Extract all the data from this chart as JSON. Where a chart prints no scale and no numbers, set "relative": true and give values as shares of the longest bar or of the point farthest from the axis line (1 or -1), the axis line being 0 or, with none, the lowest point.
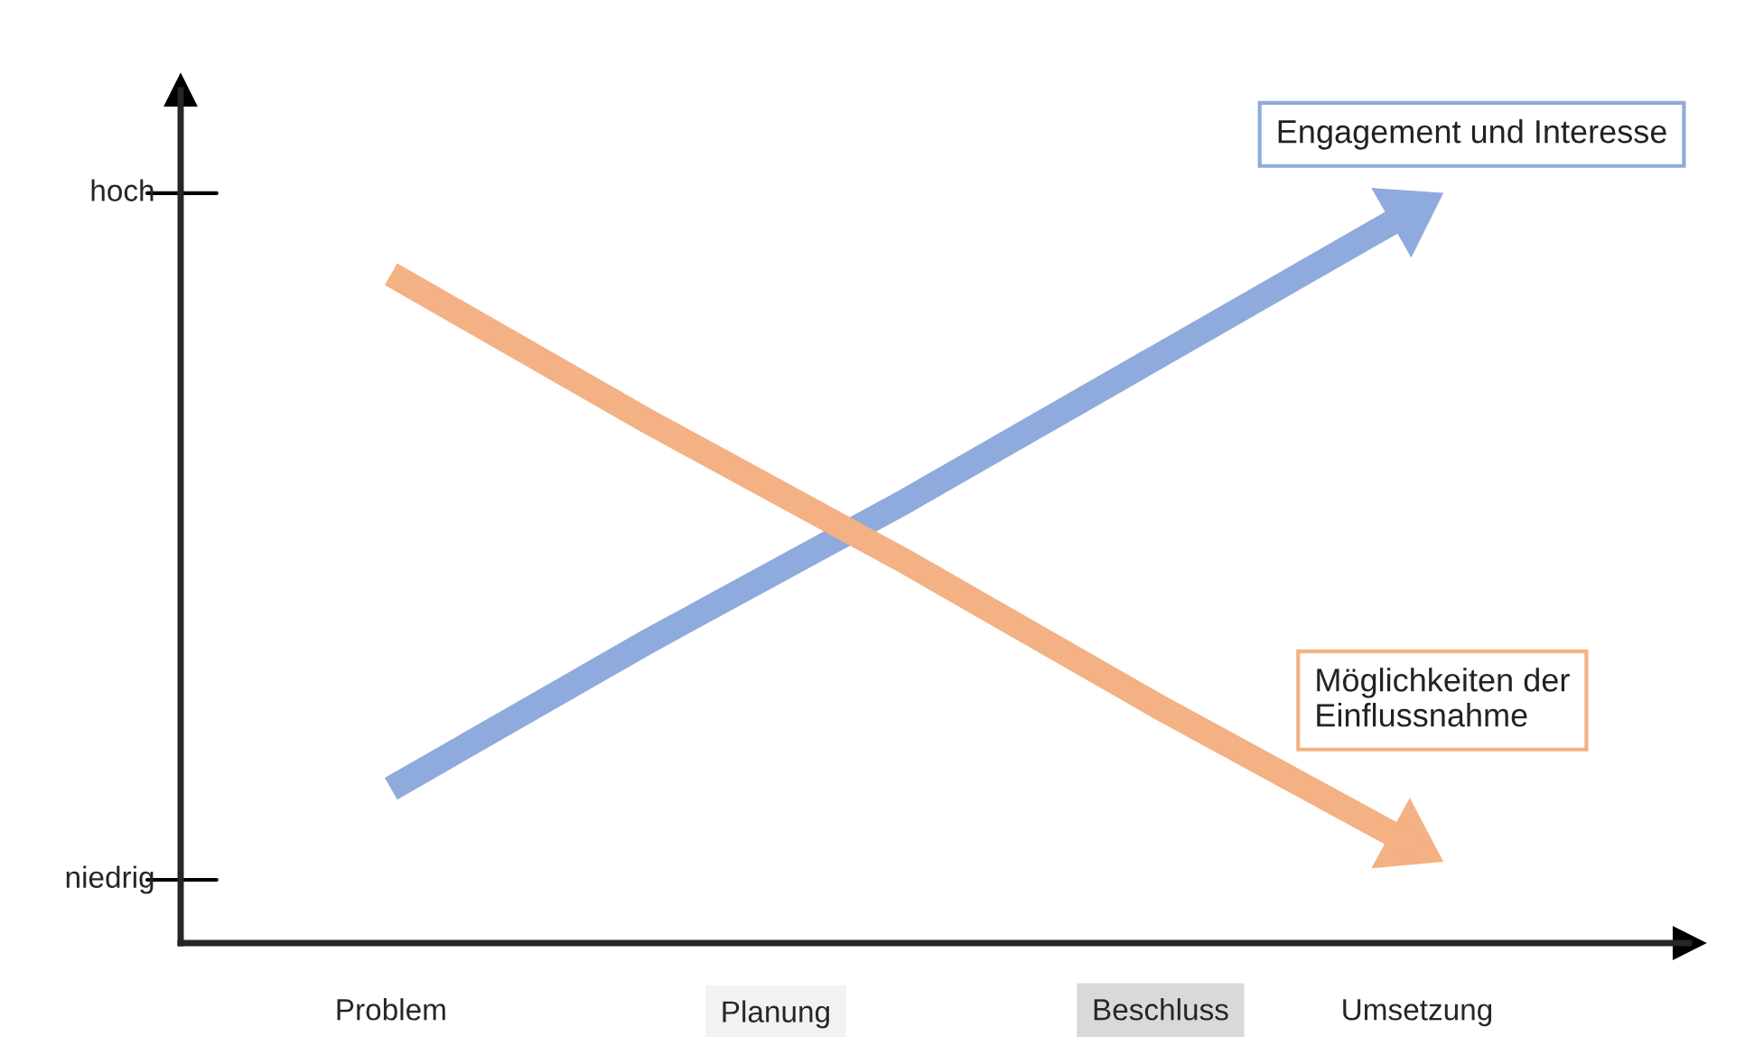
{
  "chart_data": {
    "type": "line",
    "relative": true,
    "categories": [
      "Problem",
      null,
      null,
      "Beschluss",
      "Umsetzung"
    ],
    "series": [
      {
        "name": "Engagement und Interesse",
        "color": "#8faadc",
        "values": [
          0.21,
          0.41,
          0.6,
          0.8,
          1.0
        ]
      },
      {
        "name": "Möglichkeiten der Einflussnahme",
        "color": "#f4b183",
        "values": [
          0.91,
          0.71,
          0.52,
          0.32,
          0.13
        ]
      }
    ],
    "annotations": [
      "hoch",
      "niedrig",
      "Planung"
    ],
    "legend": false,
    "grid": false,
    "marker": "none",
    "line_style": "solid"
  }
}
